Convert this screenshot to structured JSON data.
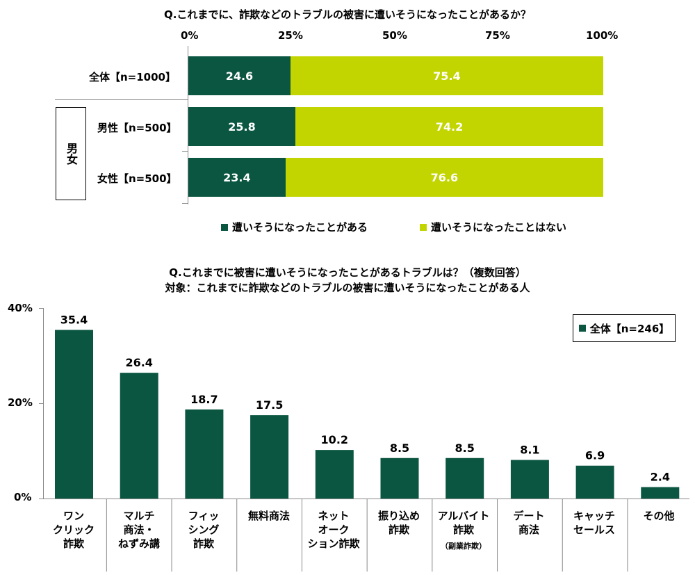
{
  "chart_data": [
    {
      "type": "bar",
      "orientation": "horizontal-stacked-100",
      "title": "Q.これまでに、詐欺などのトラブルの被害に遭いそうになったことがあるか？",
      "xticks": [
        "0%",
        "25%",
        "50%",
        "75%",
        "100%"
      ],
      "xlim": [
        0,
        100
      ],
      "categories": [
        "全体【n=1000】",
        "男性【n=500】",
        "女性【n=500】"
      ],
      "group_label": "男女",
      "series": [
        {
          "name": "遭いそうになったことがある",
          "color": "#0b5641",
          "values": [
            24.6,
            25.8,
            23.4
          ]
        },
        {
          "name": "遭いそうになったことはない",
          "color": "#c2d500",
          "values": [
            75.4,
            74.2,
            76.6
          ]
        }
      ],
      "legend_position": "bottom"
    },
    {
      "type": "bar",
      "orientation": "vertical",
      "title": "Q.これまでに被害に遭いそうになったことがあるトラブルは？（複数回答）",
      "subtitle": "対象：これまでに詐欺などのトラブルの被害に遭いそうになったことがある人",
      "yticks": [
        "40%",
        "20%",
        "0%"
      ],
      "ylim": [
        0,
        40
      ],
      "categories": [
        "ワン\nクリック\n詐欺",
        "マルチ\n商法・\nねずみ講",
        "フィッ\nシング\n詐欺",
        "無料商法",
        "ネット\nオーク\nション詐欺",
        "振り込め\n詐欺",
        "アルバイト\n詐欺",
        "デート\n商法",
        "キャッチ\nセールス",
        "その他"
      ],
      "category_note": "（副業詐欺）",
      "series": [
        {
          "name": "全体【n=246】",
          "color": "#0b5641",
          "values": [
            35.4,
            26.4,
            18.7,
            17.5,
            10.2,
            8.5,
            8.5,
            8.1,
            6.9,
            2.4
          ]
        }
      ],
      "value_labels": [
        "35.4",
        "26.4",
        "18.7",
        "17.5",
        "10.2",
        "8.5",
        "8.5",
        "8.1",
        "6.9",
        "2.4"
      ],
      "legend_position": "top-right"
    }
  ]
}
